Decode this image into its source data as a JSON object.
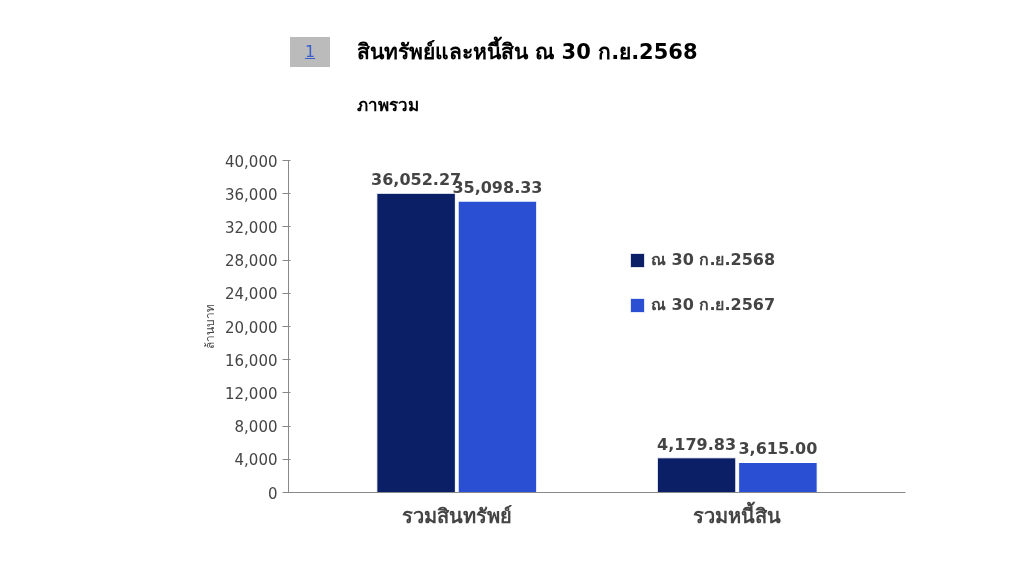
{
  "chart_data": {
    "type": "bar",
    "title": "สินทรัพย์และหนี้สิน ณ 30 ก.ย.2568",
    "subtitle": "ภาพรวม",
    "ylabel": "ล้านบาท",
    "annotations": [
      "1"
    ],
    "categories": [
      "รวมสินทรัพย์",
      "รวมหนี้สิน"
    ],
    "series": [
      {
        "name": "ณ 30 ก.ย.2568",
        "color": "#0b1f66",
        "values": [
          36052.27,
          4179.83
        ],
        "value_labels": [
          "36,052.27",
          "4,179.83"
        ]
      },
      {
        "name": "ณ 30 ก.ย.2567",
        "color": "#2b4fd3",
        "values": [
          35098.33,
          3615.0
        ],
        "value_labels": [
          "35,098.33",
          "3,615.00"
        ]
      }
    ],
    "ylim": [
      0,
      40000
    ],
    "yticks": [
      {
        "value": 0,
        "label": "0"
      },
      {
        "value": 4000,
        "label": "4,000"
      },
      {
        "value": 8000,
        "label": "8,000"
      },
      {
        "value": 12000,
        "label": "12,000"
      },
      {
        "value": 16000,
        "label": "16,000"
      },
      {
        "value": 20000,
        "label": "20,000"
      },
      {
        "value": 24000,
        "label": "24,000"
      },
      {
        "value": 28000,
        "label": "28,000"
      },
      {
        "value": 32000,
        "label": "32,000"
      },
      {
        "value": 36000,
        "label": "36,000"
      },
      {
        "value": 40000,
        "label": "40,000"
      }
    ],
    "grid": false,
    "legend": "right"
  }
}
